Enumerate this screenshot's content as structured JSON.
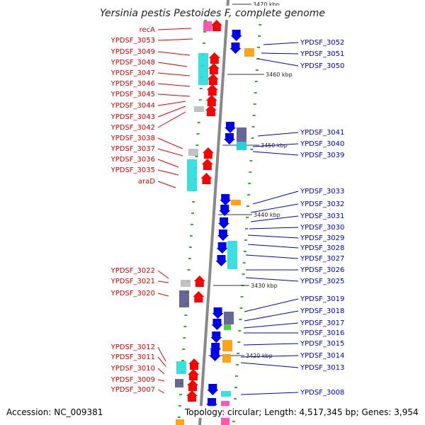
{
  "title": "Yersinia pestis Pestoides F, complete genome",
  "footer": {
    "accession": "Accession: NC_009381",
    "topology": "Topology: circular; Length: 4,517,345 bp; Genes: 3,954"
  },
  "colors": {
    "forward_gene": "#ff0000",
    "reverse_gene": "#0000ee",
    "left_label": "#cc0000",
    "right_label": "#0000bb",
    "backbone": "#888888",
    "tick": "#33aa33",
    "feature_cyan": "#22dddd",
    "feature_slate": "#55558c",
    "feature_gray": "#bbbbbb",
    "feature_orange": "#ff9900",
    "feature_pink": "#ff44aa",
    "feature_green": "#33cc33"
  },
  "kbp_ticks": [
    "3470 kbp",
    "3460 kbp",
    "3450 kbp",
    "3440 kbp",
    "3430 kbp",
    "3420 kbp"
  ],
  "left_genes": [
    "recA",
    "YPDSF_3053",
    "YPDSF_3049",
    "YPDSF_3048",
    "YPDSF_3047",
    "YPDSF_3046",
    "YPDSF_3045",
    "YPDSF_3044",
    "YPDSF_3043",
    "YPDSF_3042",
    "YPDSF_3038",
    "YPDSF_3037",
    "YPDSF_3036",
    "YPDSF_3035",
    "araD",
    "YPDSF_3022",
    "YPDSF_3021",
    "YPDSF_3020",
    "YPDSF_3012",
    "YPDSF_3011",
    "YPDSF_3010",
    "YPDSF_3009",
    "YPDSF_3007"
  ],
  "right_genes": [
    "YPDSF_3052",
    "YPDSF_3051",
    "YPDSF_3050",
    "YPDSF_3041",
    "YPDSF_3040",
    "YPDSF_3039",
    "YPDSF_3033",
    "YPDSF_3032",
    "YPDSF_3031",
    "YPDSF_3030",
    "YPDSF_3029",
    "YPDSF_3028",
    "YPDSF_3027",
    "YPDSF_3026",
    "YPDSF_3025",
    "YPDSF_3019",
    "YPDSF_3018",
    "YPDSF_3017",
    "YPDSF_3016",
    "YPDSF_3015",
    "YPDSF_3014",
    "YPDSF_3013",
    "YPDSF_3008"
  ]
}
